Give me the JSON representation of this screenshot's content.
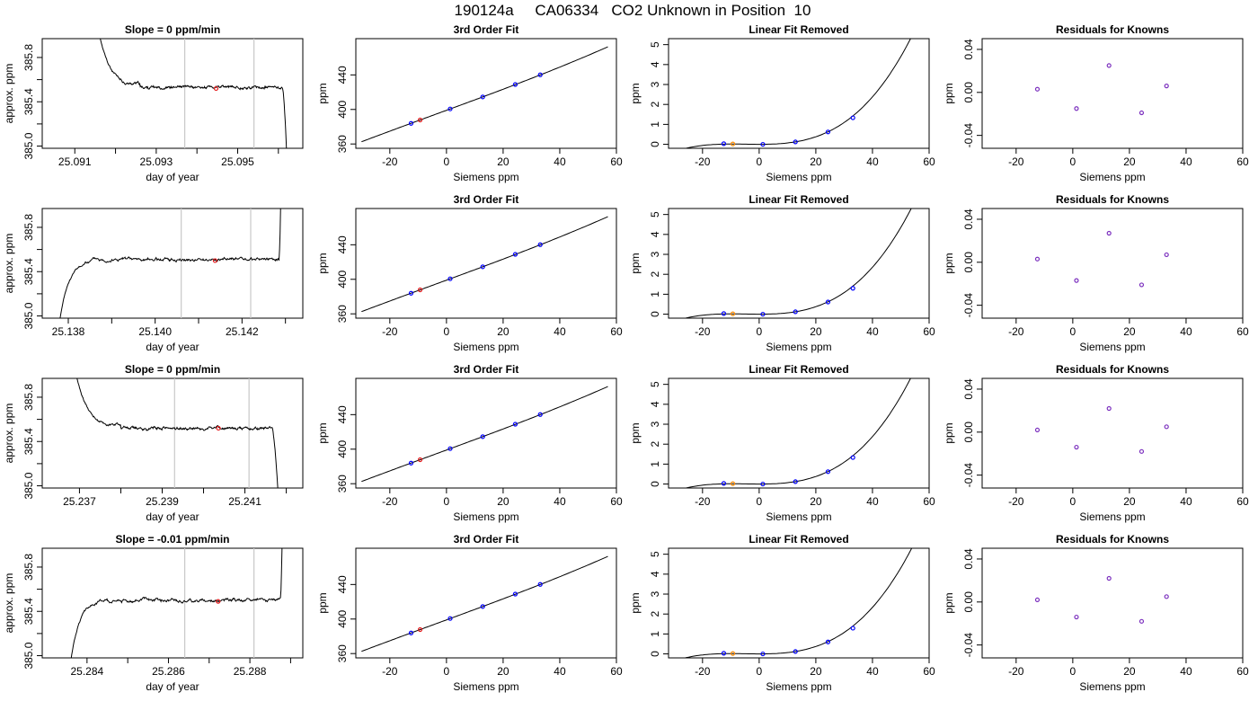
{
  "figure": {
    "title": "190124a     CA06334   CO2 Unknown in Position  10"
  },
  "chart_data": [
    {
      "type": "line",
      "row": 1,
      "title": "Slope =  0  ppm/min",
      "xlabel": "day of year",
      "ylabel": "approx. ppm",
      "xlim": [
        25.0902,
        25.0966
      ],
      "ylim": [
        384.98,
        385.97
      ],
      "xticks": [
        25.091,
        25.092,
        25.093,
        25.094,
        25.095,
        25.096
      ],
      "xtick_labels": [
        "25.091",
        "",
        "25.093",
        "",
        "25.095",
        ""
      ],
      "yticks": [
        385.0,
        385.2,
        385.4,
        385.6,
        385.8
      ],
      "ytick_labels": [
        "385.0",
        "",
        "385.4",
        "",
        "385.8"
      ],
      "vlines": [
        25.0937,
        25.0954
      ],
      "trace": {
        "start": 25.0915,
        "end": 25.0962,
        "settle": 25.0926,
        "level": 385.53,
        "initial": 386.25,
        "tail": {
          "type": "drop",
          "at": 25.0961,
          "to": 384.95
        },
        "seed": 11
      },
      "points": [
        {
          "x": 25.09447,
          "y": 385.52,
          "color": "#e41a1c"
        }
      ]
    },
    {
      "type": "line",
      "row": 1,
      "title": "3rd Order Fit",
      "xlabel": "Siemens ppm",
      "ylabel": "ppm",
      "xlim": [
        -32,
        60
      ],
      "ylim": [
        355,
        482
      ],
      "xticks": [
        -20,
        0,
        20,
        40,
        60
      ],
      "yticks": [
        360,
        400,
        440
      ],
      "curve": {
        "x0": -30,
        "x1": 57,
        "a": 399.0,
        "b": 1.205,
        "c": 0.0003,
        "d": 2.1e-05
      },
      "points": [
        {
          "x": -12.5,
          "y": 383.9,
          "color": "#0000ff"
        },
        {
          "x": 1.3,
          "y": 400.6,
          "color": "#0000ff"
        },
        {
          "x": 12.8,
          "y": 414.5,
          "color": "#0000ff"
        },
        {
          "x": 24.3,
          "y": 428.9,
          "color": "#0000ff"
        },
        {
          "x": 33.1,
          "y": 440.1,
          "color": "#0000ff"
        },
        {
          "x": -9.3,
          "y": 387.8,
          "color": "#e41a1c"
        }
      ]
    },
    {
      "type": "line",
      "row": 1,
      "title": "Linear Fit Removed",
      "xlabel": "Siemens ppm",
      "ylabel": "ppm",
      "xlim": [
        -32,
        60
      ],
      "ylim": [
        -0.2,
        5.3
      ],
      "xticks": [
        -20,
        0,
        20,
        40,
        60
      ],
      "yticks": [
        0,
        1,
        2,
        3,
        4,
        5
      ],
      "curve": {
        "x0": -30,
        "x1": 57,
        "a": 0.0,
        "b": 0.0,
        "c": 0.0004,
        "d": 2.72e-05
      },
      "points": [
        {
          "x": -12.5,
          "y": 0.03,
          "color": "#0000ff"
        },
        {
          "x": 1.3,
          "y": 0.0,
          "color": "#0000ff"
        },
        {
          "x": 12.8,
          "y": 0.12,
          "color": "#0000ff"
        },
        {
          "x": 24.3,
          "y": 0.62,
          "color": "#0000ff"
        },
        {
          "x": 33.1,
          "y": 1.33,
          "color": "#0000ff"
        },
        {
          "x": -9.3,
          "y": 0.02,
          "color": "#ff8c00"
        }
      ]
    },
    {
      "type": "scatter",
      "row": 1,
      "title": "Residuals for Knowns",
      "xlabel": "Siemens ppm",
      "ylabel": "ppm",
      "xlim": [
        -32,
        60
      ],
      "ylim": [
        -0.052,
        0.05
      ],
      "xticks": [
        -20,
        0,
        20,
        40,
        60
      ],
      "yticks": [
        -0.04,
        0.0,
        0.04
      ],
      "ytick_labels": [
        "-0.04",
        "0.00",
        "0.04"
      ],
      "points": [
        {
          "x": -12.5,
          "y": 0.003,
          "color": "#7b2fbe"
        },
        {
          "x": 1.3,
          "y": -0.015,
          "color": "#7b2fbe"
        },
        {
          "x": 12.8,
          "y": 0.025,
          "color": "#7b2fbe"
        },
        {
          "x": 24.3,
          "y": -0.019,
          "color": "#7b2fbe"
        },
        {
          "x": 33.1,
          "y": 0.006,
          "color": "#7b2fbe"
        }
      ]
    },
    {
      "type": "line",
      "row": 2,
      "title": "",
      "xlabel": "day of year",
      "ylabel": "approx. ppm",
      "xlim": [
        25.1374,
        25.1434
      ],
      "ylim": [
        384.98,
        385.97
      ],
      "xticks": [
        25.138,
        25.139,
        25.14,
        25.141,
        25.142,
        25.143
      ],
      "xtick_labels": [
        "25.138",
        "",
        "25.140",
        "",
        "25.142",
        ""
      ],
      "yticks": [
        385.0,
        385.2,
        385.4,
        385.6,
        385.8
      ],
      "ytick_labels": [
        "385.0",
        "",
        "385.4",
        "",
        "385.8"
      ],
      "vlines": [
        25.1406,
        25.1422
      ],
      "trace": {
        "start": 25.1378,
        "end": 25.1429,
        "settle": 25.1387,
        "level": 385.51,
        "initial": 384.95,
        "tail": {
          "type": "rise",
          "at": 25.14285,
          "to": 386.2
        },
        "seed": 23
      },
      "points": [
        {
          "x": 25.14138,
          "y": 385.5,
          "color": "#e41a1c"
        }
      ]
    },
    {
      "type": "line",
      "row": 2,
      "title": "3rd Order Fit",
      "xlabel": "Siemens ppm",
      "ylabel": "ppm",
      "xlim": [
        -32,
        60
      ],
      "ylim": [
        355,
        482
      ],
      "xticks": [
        -20,
        0,
        20,
        40,
        60
      ],
      "yticks": [
        360,
        400,
        440
      ],
      "curve": {
        "x0": -30,
        "x1": 57,
        "a": 399.0,
        "b": 1.205,
        "c": 0.0003,
        "d": 2.1e-05
      },
      "points": [
        {
          "x": -12.5,
          "y": 383.9,
          "color": "#0000ff"
        },
        {
          "x": 1.3,
          "y": 400.6,
          "color": "#0000ff"
        },
        {
          "x": 12.8,
          "y": 414.5,
          "color": "#0000ff"
        },
        {
          "x": 24.3,
          "y": 428.9,
          "color": "#0000ff"
        },
        {
          "x": 33.1,
          "y": 440.1,
          "color": "#0000ff"
        },
        {
          "x": -9.3,
          "y": 387.8,
          "color": "#e41a1c"
        }
      ]
    },
    {
      "type": "line",
      "row": 2,
      "title": "Linear Fit Removed",
      "xlabel": "Siemens ppm",
      "ylabel": "ppm",
      "xlim": [
        -32,
        60
      ],
      "ylim": [
        -0.2,
        5.3
      ],
      "xticks": [
        -20,
        0,
        20,
        40,
        60
      ],
      "yticks": [
        0,
        1,
        2,
        3,
        4,
        5
      ],
      "curve": {
        "x0": -30,
        "x1": 57,
        "a": 0.0,
        "b": 0.0,
        "c": 0.0004,
        "d": 2.68e-05
      },
      "points": [
        {
          "x": -12.5,
          "y": 0.03,
          "color": "#0000ff"
        },
        {
          "x": 1.3,
          "y": 0.0,
          "color": "#0000ff"
        },
        {
          "x": 12.8,
          "y": 0.12,
          "color": "#0000ff"
        },
        {
          "x": 24.3,
          "y": 0.61,
          "color": "#0000ff"
        },
        {
          "x": 33.1,
          "y": 1.3,
          "color": "#0000ff"
        },
        {
          "x": -9.3,
          "y": 0.02,
          "color": "#ff8c00"
        }
      ]
    },
    {
      "type": "scatter",
      "row": 2,
      "title": "Residuals for Knowns",
      "xlabel": "Siemens ppm",
      "ylabel": "ppm",
      "xlim": [
        -32,
        60
      ],
      "ylim": [
        -0.052,
        0.05
      ],
      "xticks": [
        -20,
        0,
        20,
        40,
        60
      ],
      "yticks": [
        -0.04,
        0.0,
        0.04
      ],
      "ytick_labels": [
        "-0.04",
        "0.00",
        "0.04"
      ],
      "points": [
        {
          "x": -12.5,
          "y": 0.003,
          "color": "#7b2fbe"
        },
        {
          "x": 1.3,
          "y": -0.017,
          "color": "#7b2fbe"
        },
        {
          "x": 12.8,
          "y": 0.027,
          "color": "#7b2fbe"
        },
        {
          "x": 24.3,
          "y": -0.021,
          "color": "#7b2fbe"
        },
        {
          "x": 33.1,
          "y": 0.007,
          "color": "#7b2fbe"
        }
      ]
    },
    {
      "type": "line",
      "row": 3,
      "title": "Slope =  0  ppm/min",
      "xlabel": "day of year",
      "ylabel": "approx. ppm",
      "xlim": [
        25.2361,
        25.2424
      ],
      "ylim": [
        384.98,
        385.97
      ],
      "xticks": [
        25.237,
        25.238,
        25.239,
        25.24,
        25.241,
        25.242
      ],
      "xtick_labels": [
        "25.237",
        "",
        "25.239",
        "",
        "25.241",
        ""
      ],
      "yticks": [
        385.0,
        385.2,
        385.4,
        385.6,
        385.8
      ],
      "ytick_labels": [
        "385.0",
        "",
        "385.4",
        "",
        "385.8"
      ],
      "vlines": [
        25.2393,
        25.2411
      ],
      "trace": {
        "start": 25.2368,
        "end": 25.2418,
        "settle": 25.238,
        "level": 385.52,
        "initial": 386.25,
        "tail": {
          "type": "drop",
          "at": 25.24165,
          "to": 384.95
        },
        "seed": 37
      },
      "points": [
        {
          "x": 25.24036,
          "y": 385.52,
          "color": "#e41a1c"
        }
      ]
    },
    {
      "type": "line",
      "row": 3,
      "title": "3rd Order Fit",
      "xlabel": "Siemens ppm",
      "ylabel": "ppm",
      "xlim": [
        -32,
        60
      ],
      "ylim": [
        355,
        482
      ],
      "xticks": [
        -20,
        0,
        20,
        40,
        60
      ],
      "yticks": [
        360,
        400,
        440
      ],
      "curve": {
        "x0": -30,
        "x1": 57,
        "a": 399.0,
        "b": 1.205,
        "c": 0.0003,
        "d": 2.1e-05
      },
      "points": [
        {
          "x": -12.5,
          "y": 383.9,
          "color": "#0000ff"
        },
        {
          "x": 1.3,
          "y": 400.6,
          "color": "#0000ff"
        },
        {
          "x": 12.8,
          "y": 414.5,
          "color": "#0000ff"
        },
        {
          "x": 24.3,
          "y": 428.9,
          "color": "#0000ff"
        },
        {
          "x": 33.1,
          "y": 440.1,
          "color": "#0000ff"
        },
        {
          "x": -9.3,
          "y": 387.8,
          "color": "#e41a1c"
        }
      ]
    },
    {
      "type": "line",
      "row": 3,
      "title": "Linear Fit Removed",
      "xlabel": "Siemens ppm",
      "ylabel": "ppm",
      "xlim": [
        -32,
        60
      ],
      "ylim": [
        -0.2,
        5.3
      ],
      "xticks": [
        -20,
        0,
        20,
        40,
        60
      ],
      "yticks": [
        0,
        1,
        2,
        3,
        4,
        5
      ],
      "curve": {
        "x0": -30,
        "x1": 57,
        "a": 0.0,
        "b": 0.0,
        "c": 0.0004,
        "d": 2.72e-05
      },
      "points": [
        {
          "x": -12.5,
          "y": 0.03,
          "color": "#0000ff"
        },
        {
          "x": 1.3,
          "y": 0.0,
          "color": "#0000ff"
        },
        {
          "x": 12.8,
          "y": 0.12,
          "color": "#0000ff"
        },
        {
          "x": 24.3,
          "y": 0.62,
          "color": "#0000ff"
        },
        {
          "x": 33.1,
          "y": 1.33,
          "color": "#0000ff"
        },
        {
          "x": -9.3,
          "y": 0.02,
          "color": "#ff8c00"
        }
      ]
    },
    {
      "type": "scatter",
      "row": 3,
      "title": "Residuals for Knowns",
      "xlabel": "Siemens ppm",
      "ylabel": "ppm",
      "xlim": [
        -32,
        60
      ],
      "ylim": [
        -0.052,
        0.05
      ],
      "xticks": [
        -20,
        0,
        20,
        40,
        60
      ],
      "yticks": [
        -0.04,
        0.0,
        0.04
      ],
      "ytick_labels": [
        "-0.04",
        "0.00",
        "0.04"
      ],
      "points": [
        {
          "x": -12.5,
          "y": 0.002,
          "color": "#7b2fbe"
        },
        {
          "x": 1.3,
          "y": -0.014,
          "color": "#7b2fbe"
        },
        {
          "x": 12.8,
          "y": 0.022,
          "color": "#7b2fbe"
        },
        {
          "x": 24.3,
          "y": -0.018,
          "color": "#7b2fbe"
        },
        {
          "x": 33.1,
          "y": 0.005,
          "color": "#7b2fbe"
        }
      ]
    },
    {
      "type": "line",
      "row": 4,
      "title": "Slope =  -0.01  ppm/min",
      "xlabel": "day of year",
      "ylabel": "approx. ppm",
      "xlim": [
        25.2829,
        25.2893
      ],
      "ylim": [
        384.98,
        385.97
      ],
      "xticks": [
        25.284,
        25.285,
        25.286,
        25.287,
        25.288,
        25.289
      ],
      "xtick_labels": [
        "25.284",
        "",
        "25.286",
        "",
        "25.288",
        ""
      ],
      "yticks": [
        385.0,
        385.2,
        385.4,
        385.6,
        385.8
      ],
      "ytick_labels": [
        "385.0",
        "",
        "385.4",
        "",
        "385.8"
      ],
      "vlines": [
        25.2864,
        25.2881
      ],
      "trace": {
        "start": 25.2836,
        "end": 25.2888,
        "settle": 25.2845,
        "level": 385.5,
        "initial": 384.95,
        "tail": {
          "type": "rise",
          "at": 25.28875,
          "to": 386.2
        },
        "seed": 51
      },
      "points": [
        {
          "x": 25.28722,
          "y": 385.49,
          "color": "#e41a1c"
        }
      ]
    },
    {
      "type": "line",
      "row": 4,
      "title": "3rd Order Fit",
      "xlabel": "Siemens ppm",
      "ylabel": "ppm",
      "xlim": [
        -32,
        60
      ],
      "ylim": [
        355,
        482
      ],
      "xticks": [
        -20,
        0,
        20,
        40,
        60
      ],
      "yticks": [
        360,
        400,
        440
      ],
      "curve": {
        "x0": -30,
        "x1": 57,
        "a": 399.0,
        "b": 1.205,
        "c": 0.0003,
        "d": 2.1e-05
      },
      "points": [
        {
          "x": -12.5,
          "y": 383.9,
          "color": "#0000ff"
        },
        {
          "x": 1.3,
          "y": 400.6,
          "color": "#0000ff"
        },
        {
          "x": 12.8,
          "y": 414.5,
          "color": "#0000ff"
        },
        {
          "x": 24.3,
          "y": 428.9,
          "color": "#0000ff"
        },
        {
          "x": 33.1,
          "y": 440.1,
          "color": "#0000ff"
        },
        {
          "x": -9.3,
          "y": 387.8,
          "color": "#e41a1c"
        }
      ]
    },
    {
      "type": "line",
      "row": 4,
      "title": "Linear Fit Removed",
      "xlabel": "Siemens ppm",
      "ylabel": "ppm",
      "xlim": [
        -32,
        60
      ],
      "ylim": [
        -0.2,
        5.3
      ],
      "xticks": [
        -20,
        0,
        20,
        40,
        60
      ],
      "yticks": [
        0,
        1,
        2,
        3,
        4,
        5
      ],
      "curve": {
        "x0": -30,
        "x1": 57,
        "a": 0.0,
        "b": 0.0,
        "c": 0.0004,
        "d": 2.65e-05
      },
      "points": [
        {
          "x": -12.5,
          "y": 0.03,
          "color": "#0000ff"
        },
        {
          "x": 1.3,
          "y": 0.0,
          "color": "#0000ff"
        },
        {
          "x": 12.8,
          "y": 0.12,
          "color": "#0000ff"
        },
        {
          "x": 24.3,
          "y": 0.6,
          "color": "#0000ff"
        },
        {
          "x": 33.1,
          "y": 1.29,
          "color": "#0000ff"
        },
        {
          "x": -9.3,
          "y": 0.02,
          "color": "#ff8c00"
        }
      ]
    },
    {
      "type": "scatter",
      "row": 4,
      "title": "Residuals for Knowns",
      "xlabel": "Siemens ppm",
      "ylabel": "ppm",
      "xlim": [
        -32,
        60
      ],
      "ylim": [
        -0.052,
        0.05
      ],
      "xticks": [
        -20,
        0,
        20,
        40,
        60
      ],
      "yticks": [
        -0.04,
        0.0,
        0.04
      ],
      "ytick_labels": [
        "-0.04",
        "0.00",
        "0.04"
      ],
      "points": [
        {
          "x": -12.5,
          "y": 0.002,
          "color": "#7b2fbe"
        },
        {
          "x": 1.3,
          "y": -0.014,
          "color": "#7b2fbe"
        },
        {
          "x": 12.8,
          "y": 0.022,
          "color": "#7b2fbe"
        },
        {
          "x": 24.3,
          "y": -0.018,
          "color": "#7b2fbe"
        },
        {
          "x": 33.1,
          "y": 0.005,
          "color": "#7b2fbe"
        }
      ]
    }
  ]
}
